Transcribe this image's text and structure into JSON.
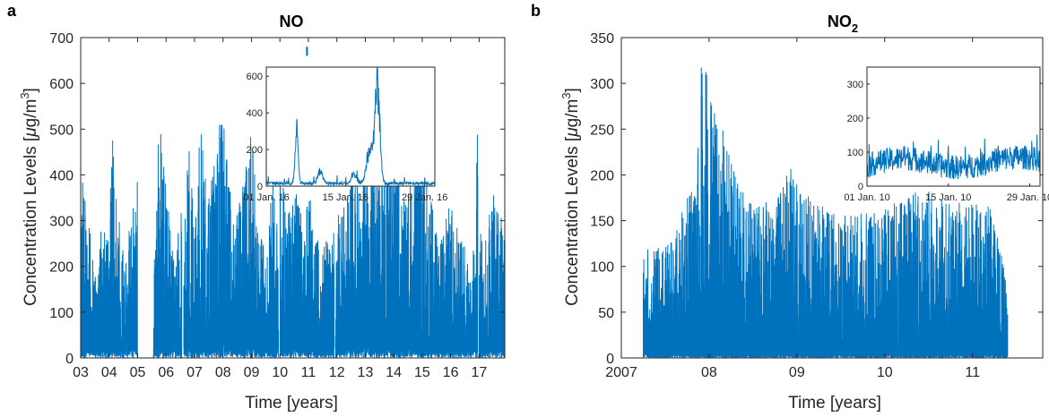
{
  "chart_data": [
    {
      "panel_label": "a",
      "type": "line",
      "title": "NO",
      "xlabel": "Time [years]",
      "ylabel": "Concentration Levels [μg/m³]",
      "ylabel_parts": {
        "prefix": "Concentration Levels [",
        "mu": "μ",
        "unit": "g/m",
        "exp": "3",
        "suffix": "]"
      },
      "xlim": [
        2003,
        2017.9
      ],
      "ylim": [
        0,
        700
      ],
      "yticks": [
        0,
        100,
        200,
        300,
        400,
        500,
        600,
        700
      ],
      "xtick_values": [
        2003,
        2004,
        2005,
        2006,
        2007,
        2008,
        2009,
        2010,
        2011,
        2012,
        2013,
        2014,
        2015,
        2016,
        2017
      ],
      "xtick_labels": [
        "03",
        "04",
        "05",
        "06",
        "07",
        "08",
        "09",
        "10",
        "11",
        "12",
        "13",
        "14",
        "15",
        "16",
        "17"
      ],
      "color": "#0072BD",
      "series": [
        {
          "gaps": [
            [
              2005.0,
              2005.55
            ],
            [
              2006.55,
              2006.62
            ],
            [
              2009.95,
              2010.0
            ],
            [
              2011.9,
              2011.95
            ],
            [
              2016.95,
              2017.0
            ]
          ],
          "envelope_x": [
            2003.0,
            2003.05,
            2003.2,
            2003.4,
            2003.55,
            2003.7,
            2004.0,
            2004.1,
            2004.4,
            2004.6,
            2004.85,
            2005.0,
            2005.55,
            2005.6,
            2005.75,
            2006.0,
            2006.3,
            2006.55,
            2006.62,
            2006.8,
            2007.0,
            2007.2,
            2007.5,
            2007.75,
            2007.85,
            2008.0,
            2008.2,
            2008.5,
            2008.8,
            2009.0,
            2009.2,
            2009.5,
            2009.7,
            2009.95,
            2010.0,
            2010.2,
            2010.5,
            2010.8,
            2011.0,
            2011.2,
            2011.5,
            2011.8,
            2011.9,
            2011.95,
            2012.2,
            2012.5,
            2012.8,
            2013.0,
            2013.2,
            2013.5,
            2013.8,
            2014.0,
            2014.3,
            2014.6,
            2014.8,
            2015.0,
            2015.3,
            2015.6,
            2015.8,
            2016.0,
            2016.3,
            2016.6,
            2016.85,
            2016.95,
            2017.0,
            2017.2,
            2017.5,
            2017.8,
            2017.9
          ],
          "envelope_y": [
            300,
            410,
            360,
            240,
            200,
            320,
            260,
            500,
            310,
            230,
            350,
            420,
            0,
            300,
            565,
            380,
            200,
            350,
            250,
            530,
            300,
            510,
            350,
            460,
            500,
            555,
            380,
            330,
            420,
            530,
            300,
            230,
            380,
            405,
            520,
            300,
            400,
            310,
            420,
            260,
            280,
            250,
            320,
            300,
            340,
            450,
            370,
            480,
            520,
            400,
            520,
            505,
            330,
            420,
            500,
            450,
            350,
            240,
            300,
            350,
            300,
            210,
            260,
            650,
            280,
            250,
            380,
            300,
            300
          ],
          "baseline_y": [
            0,
            40,
            60,
            30,
            50,
            80,
            40,
            60,
            30,
            50,
            70,
            40,
            0,
            30,
            60,
            40,
            50,
            30,
            40,
            60,
            30,
            50,
            40,
            60,
            50,
            70,
            40,
            30,
            50,
            60,
            40,
            30,
            50,
            40,
            60,
            30,
            50,
            40,
            60,
            30,
            40,
            30,
            50,
            40,
            30,
            50,
            40,
            60,
            50,
            40,
            60,
            50,
            30,
            40,
            50,
            40,
            30,
            40,
            30,
            50,
            40,
            30,
            40,
            60,
            40,
            30,
            50,
            40,
            0
          ]
        }
      ],
      "marker": {
        "x": 2010.95,
        "y_range": [
          660,
          680
        ]
      },
      "inset": {
        "type": "line",
        "xlim": [
          2016.0,
          2016.085
        ],
        "ylim": [
          0,
          650
        ],
        "yticks": [
          0,
          200,
          400,
          600
        ],
        "xtick_labels": [
          "01 Jan. 16",
          "15 Jan. 16",
          "29 Jan. 16"
        ],
        "peaks": [
          {
            "x": 0.18,
            "y": 400,
            "w": 0.012
          },
          {
            "x": 0.32,
            "y": 90,
            "w": 0.02
          },
          {
            "x": 0.52,
            "y": 60,
            "w": 0.02
          },
          {
            "x": 0.66,
            "y": 650,
            "w": 0.02
          },
          {
            "x": 0.62,
            "y": 250,
            "w": 0.03
          }
        ],
        "base_level": 20
      }
    },
    {
      "panel_label": "b",
      "type": "line",
      "title": "NO",
      "title_sub": "2",
      "xlabel": "Time [years]",
      "ylabel": "Concentration Levels [μg/m³]",
      "ylabel_parts": {
        "prefix": "Concentration Levels [",
        "mu": "μ",
        "unit": "g/m",
        "exp": "3",
        "suffix": "]"
      },
      "xlim": [
        2007.0,
        2011.8
      ],
      "ylim": [
        0,
        350
      ],
      "yticks": [
        0,
        50,
        100,
        150,
        200,
        250,
        300,
        350
      ],
      "xtick_values": [
        2007,
        2008,
        2009,
        2010,
        2011
      ],
      "xtick_labels": [
        "2007",
        "08",
        "09",
        "10",
        "11"
      ],
      "color": "#0072BD",
      "series": [
        {
          "x_start": 2007.25,
          "x_end": 2011.4,
          "envelope_x": [
            2007.25,
            2007.35,
            2007.45,
            2007.6,
            2007.75,
            2007.85,
            2007.92,
            2008.0,
            2008.1,
            2008.15,
            2008.3,
            2008.5,
            2008.7,
            2008.95,
            2009.2,
            2009.5,
            2009.8,
            2010.0,
            2010.2,
            2010.4,
            2010.6,
            2010.8,
            2011.0,
            2011.2,
            2011.4
          ],
          "envelope_y": [
            130,
            125,
            120,
            135,
            190,
            180,
            342,
            300,
            250,
            258,
            200,
            180,
            170,
            210,
            170,
            155,
            160,
            175,
            170,
            190,
            175,
            170,
            170,
            165,
            85
          ],
          "baseline_y": [
            15,
            8,
            5,
            10,
            8,
            5,
            10,
            5,
            8,
            10,
            5,
            8,
            5,
            10,
            5,
            8,
            5,
            10,
            5,
            8,
            5,
            10,
            5,
            8,
            5
          ]
        }
      ],
      "inset": {
        "type": "line",
        "xlim": [
          2010.0,
          2010.085
        ],
        "ylim": [
          0,
          350
        ],
        "yticks": [
          0,
          100,
          200,
          300
        ],
        "xtick_labels": [
          "01 Jan. 10",
          "15 Jan. 10",
          "29 Jan. 10"
        ],
        "base_level": 70,
        "amplitude": 45
      }
    }
  ]
}
